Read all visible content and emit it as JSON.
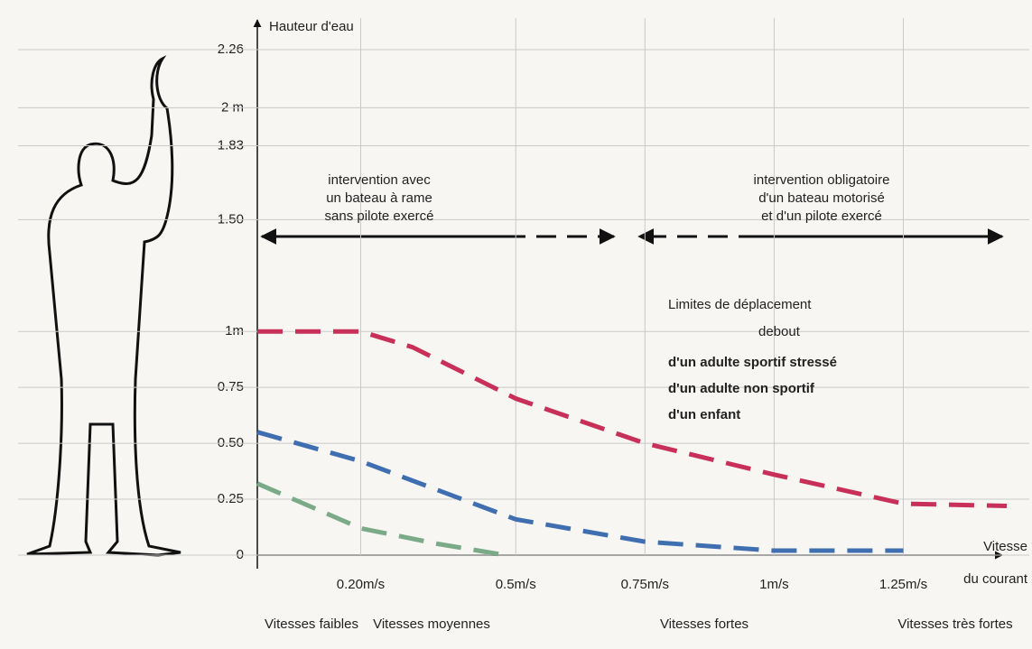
{
  "chart_data": {
    "type": "line",
    "y_label": "Hauteur d'eau",
    "x_label": [
      "Vitesse",
      "du courant"
    ],
    "xlim": [
      0,
      1.45
    ],
    "ylim": [
      0,
      2.26
    ],
    "xticks": [
      {
        "value": 0.2,
        "label": "0.20m/s"
      },
      {
        "value": 0.5,
        "label": "0.5m/s"
      },
      {
        "value": 0.75,
        "label": "0.75m/s"
      },
      {
        "value": 1,
        "label": "1m/s"
      },
      {
        "value": 1.25,
        "label": "1.25m/s"
      }
    ],
    "yticks": [
      0,
      0.25,
      {
        "value": 0.5,
        "label": "0.50"
      },
      0.75,
      {
        "value": 1,
        "label": "1m"
      },
      {
        "value": 1.5,
        "label": "1.50"
      },
      1.83,
      {
        "value": 2,
        "label": "2 m"
      },
      2.26
    ],
    "grid": true,
    "annotations": [
      [
        "intervention avec",
        "un bateau à rame",
        "sans pilote exercé"
      ],
      [
        "intervention obligatoire",
        "d'un bateau motorisé",
        "et d'un pilote exercé"
      ]
    ],
    "legend_title": [
      "Limites de déplacement",
      "debout"
    ],
    "zones": [
      "Vitesses faibles",
      "Vitesses moyennes",
      "Vitesses fortes",
      "Vitesses très fortes"
    ],
    "series": [
      {
        "name": "d'un adulte sportif stressé",
        "color": "#c8305a",
        "x": [
          0,
          0.2,
          0.3,
          0.5,
          0.75,
          1,
          1.25,
          1.45
        ],
        "values": [
          1.0,
          1.0,
          0.93,
          0.7,
          0.5,
          0.36,
          0.23,
          0.22
        ]
      },
      {
        "name": "d'un adulte non sportif",
        "color": "#3f6fb0",
        "x": [
          0,
          0.2,
          0.5,
          0.75,
          1,
          1.25
        ],
        "values": [
          0.55,
          0.42,
          0.16,
          0.06,
          0.02,
          0.02
        ]
      },
      {
        "name": "d'un enfant",
        "color": "#7aaa88",
        "x": [
          0,
          0.2,
          0.35,
          0.48
        ],
        "values": [
          0.32,
          0.12,
          0.05,
          0.0
        ]
      }
    ]
  }
}
